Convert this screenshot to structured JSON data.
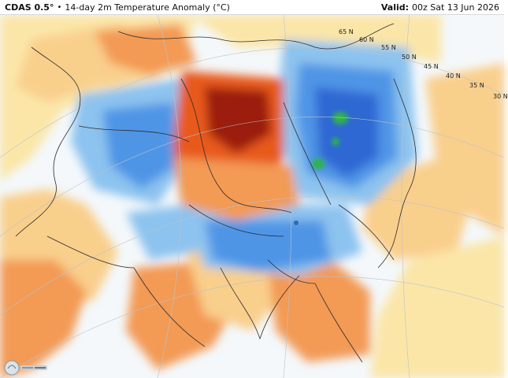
{
  "header": {
    "model": "CDAS 0.5°",
    "separator": "•",
    "title": "14-day 2m Temperature Anomaly (°C)",
    "valid_label": "Valid:",
    "valid_time": "00z Sat 13 Jun 2026"
  },
  "latitude_labels": [
    "65 N",
    "60 N",
    "55 N",
    "50 N",
    "45 N",
    "40 N",
    "35 N",
    "30 N"
  ],
  "logo": {
    "name": "WeatherBELL"
  },
  "colors": {
    "strong_warm": "#9c1a0a",
    "warm": "#e85a1e",
    "moderate_warm": "#f39a55",
    "mild_warm": "#f9cf8c",
    "slight_warm": "#fbe6a8",
    "neutral": "#f4f8fb",
    "slight_cool": "#cfe6f6",
    "cool": "#8cc3ef",
    "moderate_cool": "#4f95e6",
    "strong_cool": "#2e67d3",
    "extreme_cool": "#2db34a",
    "border": "#2b2b2b",
    "graticule": "#b9c3cc"
  }
}
